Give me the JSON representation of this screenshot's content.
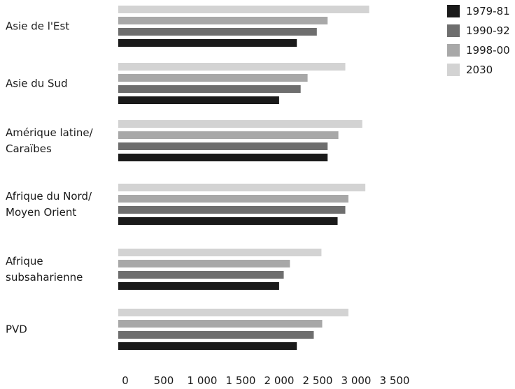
{
  "chart_data": {
    "type": "bar",
    "orientation": "horizontal",
    "categories": [
      [
        "Asie de l'Est"
      ],
      [
        "Asie du Sud"
      ],
      [
        "Amérique latine/",
        "Caraïbes"
      ],
      [
        "Afrique du Nord/",
        "Moyen Orient"
      ],
      [
        "Afrique",
        "subsaharienne"
      ],
      [
        "PVD"
      ]
    ],
    "series": [
      {
        "name": "1979-81",
        "color": "#1a1a1a",
        "values": [
          2320,
          2090,
          2720,
          2850,
          2090,
          2320
        ]
      },
      {
        "name": "1990-92",
        "color": "#6e6e6e",
        "values": [
          2580,
          2370,
          2720,
          2950,
          2150,
          2540
        ]
      },
      {
        "name": "1998-00",
        "color": "#a8a8a8",
        "values": [
          2720,
          2460,
          2860,
          2990,
          2230,
          2650
        ]
      },
      {
        "name": "2030",
        "color": "#d3d3d3",
        "values": [
          3260,
          2950,
          3170,
          3210,
          2640,
          2990
        ]
      }
    ],
    "xticks": [
      "0",
      "500",
      "1 000",
      "1 500",
      "2 000",
      "2 500",
      "3 000",
      "3 500"
    ],
    "xlim": [
      0,
      3500
    ],
    "legend_position": "top-right",
    "grid": false,
    "title": "",
    "xlabel": "",
    "ylabel": ""
  }
}
